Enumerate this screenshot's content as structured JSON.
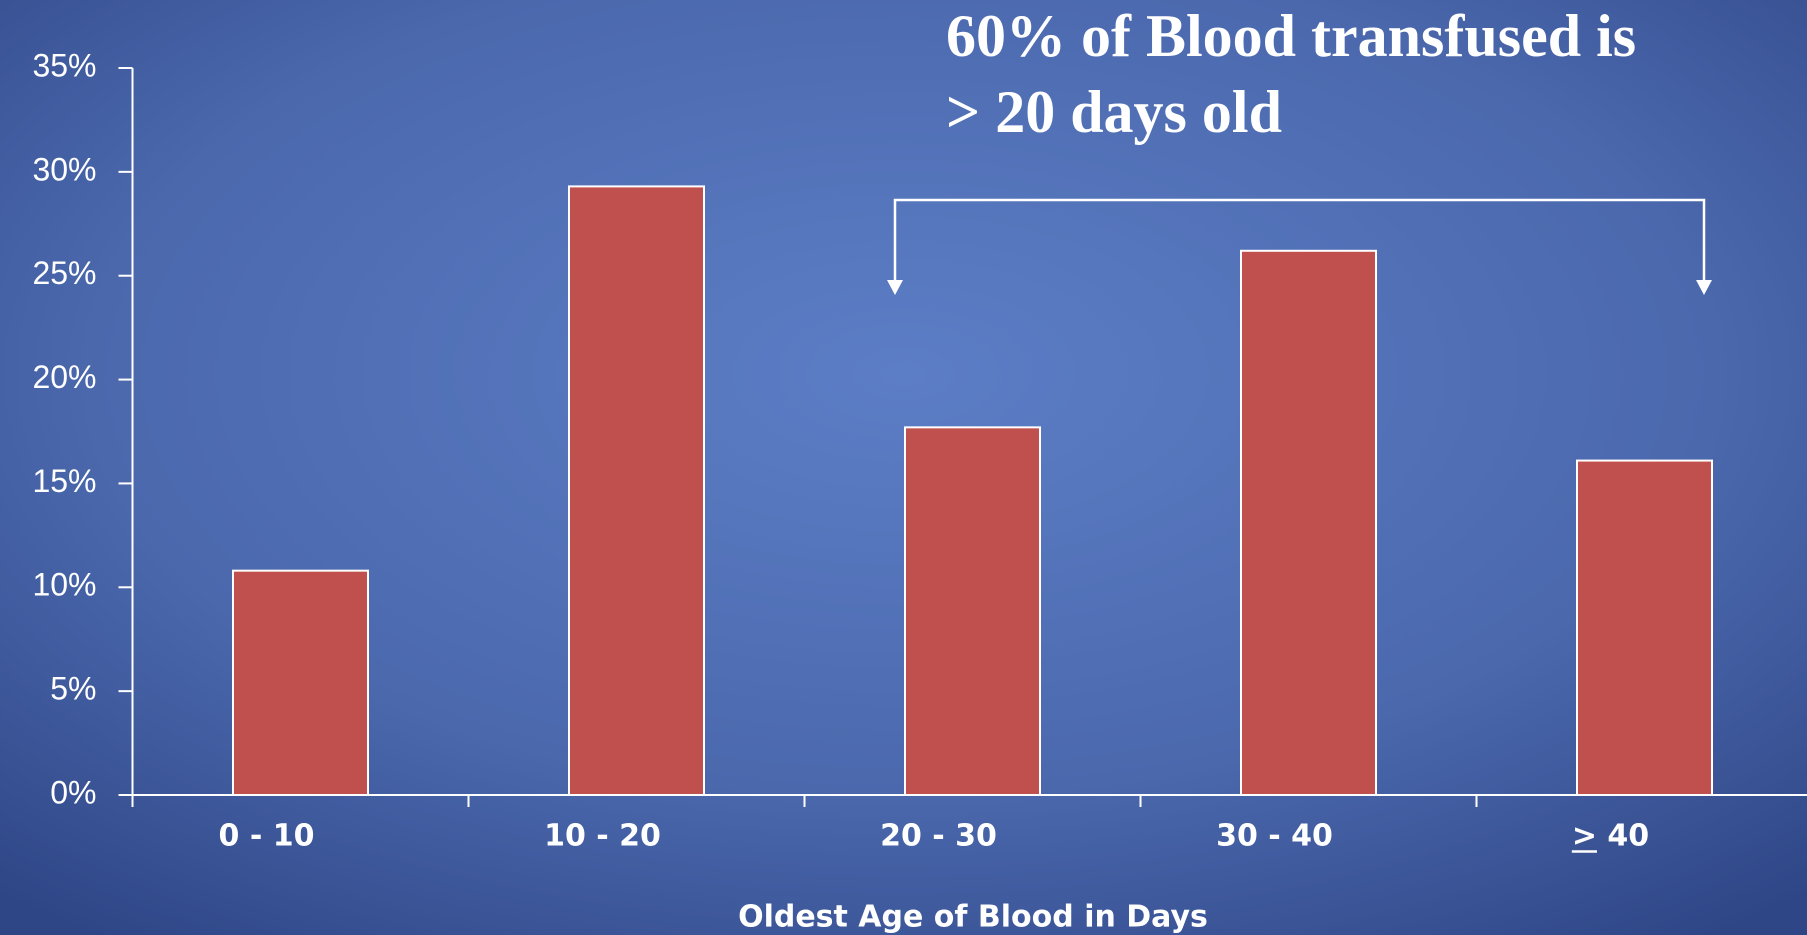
{
  "chart_data": {
    "type": "bar",
    "annotation": [
      "60% of Blood transfused is",
      "> 20 days old"
    ],
    "x_label": "Oldest Age of Blood in Days",
    "categories": [
      "0 - 10",
      "10 - 20",
      "20 - 30",
      "30 - 40",
      "> 40"
    ],
    "values": [
      10.8,
      29.3,
      17.7,
      26.2,
      16.1
    ],
    "color": "#c0504d",
    "ylim": [
      0,
      35
    ],
    "yticks": [
      {
        "value": 0,
        "label": "0%"
      },
      {
        "value": 5,
        "label": "5%"
      },
      {
        "value": 10,
        "label": "10%"
      },
      {
        "value": 15,
        "label": "15%"
      },
      {
        "value": 20,
        "label": "20%"
      },
      {
        "value": 25,
        "label": "25%"
      },
      {
        "value": 30,
        "label": "30%"
      },
      {
        "value": 35,
        "label": "35%"
      }
    ]
  }
}
